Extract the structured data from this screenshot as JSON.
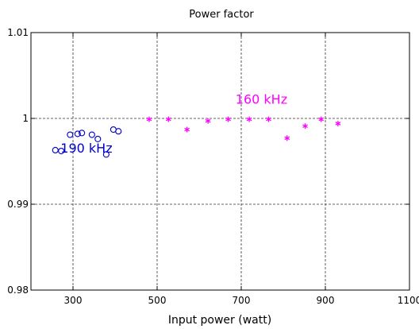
{
  "chart_data": {
    "type": "scatter",
    "title": "Power factor",
    "xlabel": "Input power (watt)",
    "ylabel": "",
    "xlim": [
      200,
      1100
    ],
    "ylim": [
      0.98,
      1.01
    ],
    "x_ticks": [
      300,
      500,
      700,
      900,
      1100
    ],
    "x_tick_labels": [
      "300",
      "500",
      "700",
      "900",
      "1100"
    ],
    "y_ticks": [
      0.98,
      0.99,
      1.0,
      1.01
    ],
    "y_tick_labels": [
      "0.98",
      "0.99",
      "1",
      "1.01"
    ],
    "grid": true,
    "series": [
      {
        "marker": "circle",
        "color": "#0000cc",
        "x": [
          258,
          272,
          293,
          311,
          321,
          345,
          359,
          379,
          396,
          408
        ],
        "y": [
          0.9963,
          0.9962,
          0.9981,
          0.9982,
          0.9983,
          0.9981,
          0.9976,
          0.9958,
          0.9987,
          0.9985
        ]
      },
      {
        "marker": "asterisk",
        "color": "#ff00ff",
        "x": [
          481,
          527,
          571,
          621,
          669,
          719,
          765,
          809,
          852,
          890,
          930
        ],
        "y": [
          0.9999,
          0.9999,
          0.9987,
          0.9997,
          0.9999,
          0.9999,
          0.9999,
          0.9977,
          0.9991,
          0.9999,
          0.9994
        ]
      }
    ],
    "annotations": [
      {
        "text": "190 kHz",
        "x": 332,
        "y": 0.996,
        "color": "#0000cc"
      },
      {
        "text": "160 kHz",
        "x": 748,
        "y": 1.0017,
        "color": "#ff00ff"
      }
    ]
  }
}
